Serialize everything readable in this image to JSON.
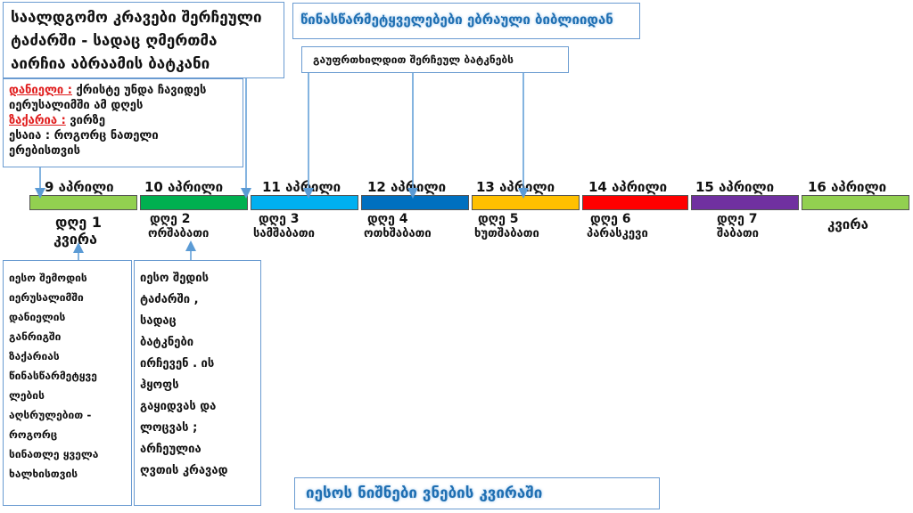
{
  "top_left_box": {
    "lines": [
      "საალდგომო კრავები შერჩეული",
      "ტაძარში - სადაც ღმერთმა",
      "აირჩია აბრაამის ბატკანი"
    ]
  },
  "top_center_box": {
    "text": "წინასწარმეტყველებები  ებრაული ბიბლიიდან"
  },
  "lamb_box": {
    "text": "გაუფრთხილდით შერჩეულ ბატკნებს"
  },
  "prophets_box": {
    "daniel_name": "დანიელი :",
    "daniel_text": "ქრისტე უნდა ჩავიდეს",
    "daniel_line2": "იერუსალიმში  ამ დღეს",
    "zechariah_name": "ზაქარია :",
    "zechariah_text": "ვირზე",
    "isaiah_line": "ესაია : როგორც ნათელი",
    "isaiah_line2": "ერებისთვის"
  },
  "timeline": [
    {
      "date": "9 აპრილი",
      "color": "#92d050",
      "day": "დღე 1",
      "sub": "კვირა"
    },
    {
      "date": "10 აპრილი",
      "color": "#00b050",
      "day": "დღე 2",
      "sub": "ორშაბათი"
    },
    {
      "date": "11 აპრილი",
      "color": "#00b0f0",
      "day": "დღე 3",
      "sub": "სამშაბათი"
    },
    {
      "date": "12 აპრილი",
      "color": "#0070c0",
      "day": "დღე 4",
      "sub": "ოთხშაბათი"
    },
    {
      "date": "13 აპრილი",
      "color": "#ffc000",
      "day": "დღე 5",
      "sub": "ხუთშაბათი"
    },
    {
      "date": "14 აპრილი",
      "color": "#ff0000",
      "day": "დღე 6",
      "sub": "პარასკევი"
    },
    {
      "date": "15 აპრილი",
      "color": "#7030a0",
      "day": "დღე 7",
      "sub": "შაბათი"
    },
    {
      "date": "16 აპრილი",
      "color": "#92d050",
      "day": "",
      "sub": "კვირა"
    }
  ],
  "left_bottom_box": {
    "lines": [
      "იესო შემოდის",
      "იერუსალიმში",
      "დანიელის",
      "განრიგში",
      "ზაქარიას",
      "წინასწარმეტყვე",
      "ლების",
      "აღსრულებით  -",
      "როგორც",
      "სინათლე ყველა",
      "ხალხისთვის"
    ]
  },
  "center_bottom_box": {
    "lines": [
      "იესო შედის",
      "ტაძარში ,",
      "სადაც",
      "ბატკნები",
      "ირჩევენ . ის",
      "ჰყოფს",
      "გაყიდვას და",
      "ლოცვას ;",
      "არჩეულია",
      "ღვთის კრავად"
    ]
  },
  "bottom_title": {
    "text": "იესოს ნიშნები ვნების კვირაში"
  }
}
